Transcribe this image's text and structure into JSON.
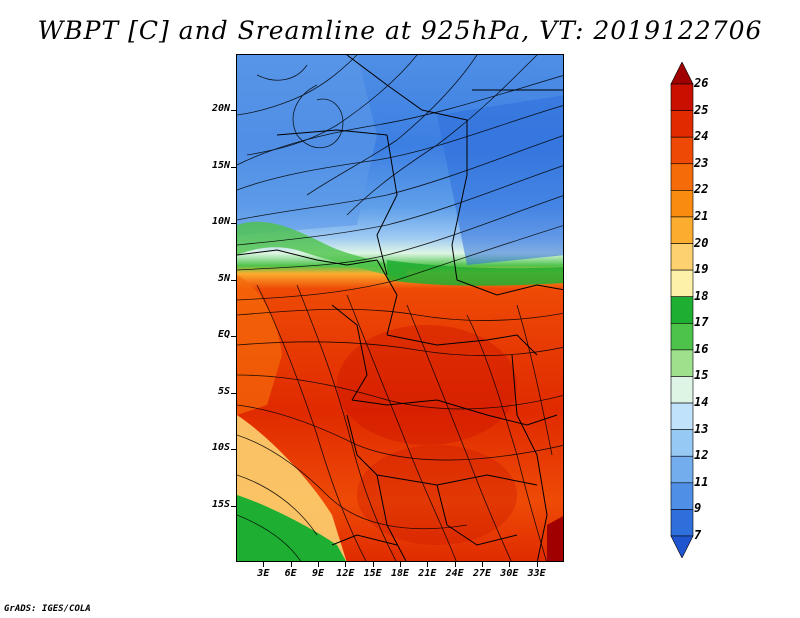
{
  "title": "WBPT [C] and Sreamline at 925hPa, VT: 2019122706",
  "footer": "GrADS: IGES/COLA",
  "map": {
    "lon_range": [
      0,
      36
    ],
    "lat_range": [
      -20,
      25
    ],
    "lat_ticks": [
      "20N",
      "15N",
      "10N",
      "5N",
      "EQ",
      "5S",
      "10S",
      "15S"
    ],
    "lat_values": [
      20,
      15,
      10,
      5,
      0,
      -5,
      -10,
      -15
    ],
    "lon_ticks": [
      "3E",
      "6E",
      "9E",
      "12E",
      "15E",
      "18E",
      "21E",
      "24E",
      "27E",
      "30E",
      "33E"
    ],
    "lon_values": [
      3,
      6,
      9,
      12,
      15,
      18,
      21,
      24,
      27,
      30,
      33
    ]
  },
  "colorbar": {
    "labels": [
      "26",
      "25",
      "24",
      "23",
      "22",
      "21",
      "20",
      "19",
      "18",
      "17",
      "16",
      "15",
      "14",
      "13",
      "12",
      "11",
      "9",
      "7"
    ],
    "colors": [
      "#a00000",
      "#c80f00",
      "#e02a00",
      "#ee4a06",
      "#f56b0a",
      "#f98c10",
      "#fbad30",
      "#fdd070",
      "#fdf0a8",
      "#1eae32",
      "#4ec34a",
      "#9ee08c",
      "#def5e6",
      "#c0e2fb",
      "#97c9f5",
      "#73adee",
      "#4f8fe6",
      "#2f6fdc",
      "#1f56d0"
    ]
  }
}
